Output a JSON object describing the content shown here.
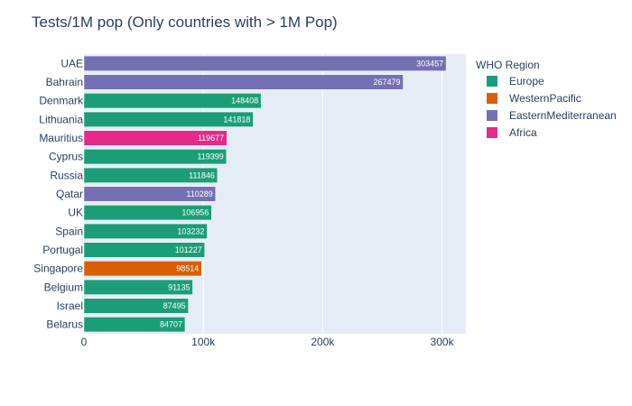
{
  "chart_data": {
    "type": "bar",
    "orientation": "horizontal",
    "title": "Tests/1M pop (Only countries with > 1M Pop)",
    "xlabel": "",
    "ylabel": "",
    "xlim": [
      0,
      320000
    ],
    "x_tick_values": [
      0,
      100000,
      200000,
      300000
    ],
    "x_tick_labels": [
      "0",
      "100k",
      "200k",
      "300k"
    ],
    "grid": true,
    "legend_position": "right",
    "legend_title": "WHO Region",
    "region_colors": {
      "Europe": "#1b9e77",
      "WesternPacific": "#d95f02",
      "EasternMediterranean": "#7570b3",
      "Africa": "#e7298a"
    },
    "categories": [
      "UAE",
      "Bahrain",
      "Denmark",
      "Lithuania",
      "Mauritius",
      "Cyprus",
      "Russia",
      "Qatar",
      "UK",
      "Spain",
      "Portugal",
      "Singapore",
      "Belgium",
      "Israel",
      "Belarus"
    ],
    "values": [
      303457,
      267479,
      148408,
      141818,
      119677,
      119399,
      111846,
      110289,
      106956,
      103232,
      101227,
      98514,
      91135,
      87495,
      84707
    ],
    "value_labels": [
      "303457",
      "267479",
      "148408",
      "141818",
      "119677",
      "119399",
      "111846",
      "110289",
      "106956",
      "103232",
      "101227",
      "98514",
      "91135",
      "87495",
      "84707"
    ],
    "regions": [
      "EasternMediterranean",
      "EasternMediterranean",
      "Europe",
      "Europe",
      "Africa",
      "Europe",
      "Europe",
      "EasternMediterranean",
      "Europe",
      "Europe",
      "Europe",
      "WesternPacific",
      "Europe",
      "Europe",
      "Europe"
    ],
    "series": [
      {
        "name": "Europe"
      },
      {
        "name": "WesternPacific"
      },
      {
        "name": "EasternMediterranean"
      },
      {
        "name": "Africa"
      }
    ]
  }
}
